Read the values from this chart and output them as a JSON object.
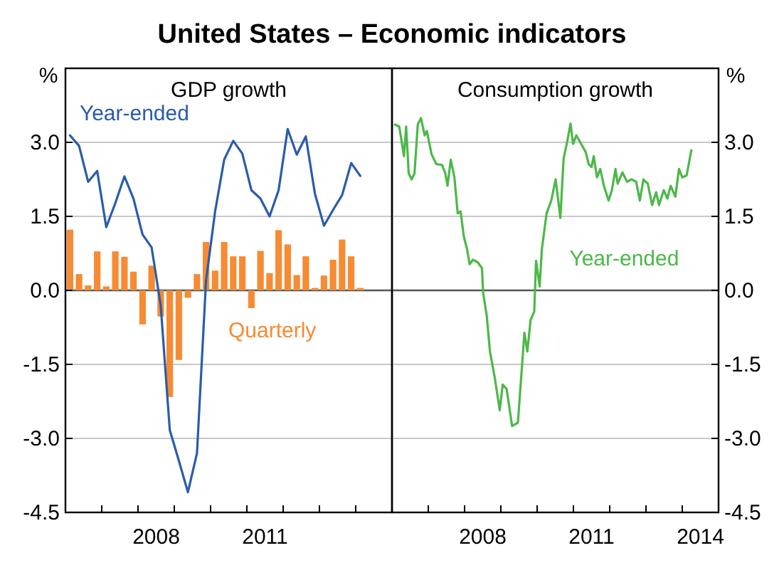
{
  "chart_data": [
    {
      "type": "bar",
      "title": "United States – Economic indicators",
      "subtitle": "GDP growth",
      "ylabel": "%",
      "x": [
        2006.125,
        2006.375,
        2006.625,
        2006.875,
        2007.125,
        2007.375,
        2007.625,
        2007.875,
        2008.125,
        2008.375,
        2008.625,
        2008.875,
        2009.125,
        2009.375,
        2009.625,
        2009.875,
        2010.125,
        2010.375,
        2010.625,
        2010.875,
        2011.125,
        2011.375,
        2011.625,
        2011.875,
        2012.125,
        2012.375,
        2012.625,
        2012.875,
        2013.125,
        2013.375,
        2013.625,
        2013.875,
        2014.125
      ],
      "series": [
        {
          "name": "Quarterly",
          "color": "#f68b33",
          "values": [
            1.23,
            0.33,
            0.1,
            0.79,
            0.08,
            0.79,
            0.68,
            0.38,
            -0.69,
            0.5,
            -0.53,
            -2.16,
            -1.41,
            -0.15,
            0.33,
            0.98,
            0.4,
            0.98,
            0.69,
            0.69,
            -0.36,
            0.8,
            0.35,
            1.22,
            0.93,
            0.31,
            0.69,
            0.05,
            0.3,
            0.62,
            1.03,
            0.69,
            0.05
          ]
        },
        {
          "name": "Year-ended",
          "type": "line",
          "color": "#2a5caa",
          "values": [
            3.14,
            2.93,
            2.2,
            2.42,
            1.28,
            1.77,
            2.31,
            1.86,
            1.13,
            0.87,
            -0.3,
            -2.83,
            -3.45,
            -4.09,
            -3.3,
            0.2,
            1.6,
            2.65,
            3.03,
            2.77,
            2.03,
            1.86,
            1.5,
            2.03,
            3.27,
            2.75,
            3.12,
            1.96,
            1.31,
            1.63,
            1.93,
            2.58,
            2.32
          ]
        }
      ],
      "xlim": [
        2006,
        2015
      ],
      "xticks": [
        {
          "value": 2007,
          "label": null
        },
        {
          "value": 2008,
          "label": null
        },
        {
          "value": 2008.5,
          "label": "2008"
        },
        {
          "value": 2009,
          "label": null
        },
        {
          "value": 2010,
          "label": null
        },
        {
          "value": 2011,
          "label": null
        },
        {
          "value": 2011.5,
          "label": "2011"
        },
        {
          "value": 2012,
          "label": null
        },
        {
          "value": 2013,
          "label": null
        },
        {
          "value": 2014,
          "label": null
        }
      ],
      "ylim": [
        -4.5,
        4.5
      ],
      "yticks": [
        {
          "value": -4.5,
          "label": "-4.5"
        },
        {
          "value": -3,
          "label": "-3.0"
        },
        {
          "value": -1.5,
          "label": "-1.5"
        },
        {
          "value": 0,
          "label": "0.0"
        },
        {
          "value": 1.5,
          "label": "1.5"
        },
        {
          "value": 3,
          "label": "3.0"
        }
      ],
      "grid": "y",
      "ref_lines": [
        {
          "axis": "y",
          "value": 0,
          "color": "#555555"
        }
      ]
    },
    {
      "type": "line",
      "subtitle": "Consumption growth",
      "y2label": "%",
      "series": [
        {
          "name": "Year-ended",
          "color": "#4cb848",
          "axis": "y2",
          "x": [
            2006.08,
            2006.2,
            2006.33,
            2006.39,
            2006.46,
            2006.54,
            2006.62,
            2006.71,
            2006.8,
            2006.9,
            2006.96,
            2007.09,
            2007.22,
            2007.38,
            2007.47,
            2007.53,
            2007.62,
            2007.72,
            2007.81,
            2007.89,
            2007.98,
            2008.07,
            2008.14,
            2008.23,
            2008.36,
            2008.48,
            2008.51,
            2008.61,
            2008.7,
            2008.83,
            2008.97,
            2009.05,
            2009.16,
            2009.31,
            2009.47,
            2009.65,
            2009.73,
            2009.82,
            2009.92,
            2009.97,
            2010.07,
            2010.13,
            2010.26,
            2010.39,
            2010.51,
            2010.64,
            2010.73,
            2010.83,
            2010.92,
            2010.99,
            2011.08,
            2011.21,
            2011.34,
            2011.42,
            2011.5,
            2011.56,
            2011.65,
            2011.74,
            2011.84,
            2011.97,
            2012.06,
            2012.16,
            2012.22,
            2012.35,
            2012.48,
            2012.6,
            2012.73,
            2012.83,
            2012.93,
            2013.05,
            2013.17,
            2013.28,
            2013.36,
            2013.49,
            2013.59,
            2013.68,
            2013.81,
            2013.91,
            2014,
            2014.12,
            2014.25
          ],
          "values": [
            3.36,
            3.32,
            2.72,
            3.32,
            2.37,
            2.25,
            2.37,
            3.36,
            3.49,
            3.14,
            3.23,
            2.76,
            2.56,
            2.54,
            2.37,
            2.12,
            2.65,
            2.29,
            1.56,
            1.6,
            1.09,
            0.83,
            0.53,
            0.62,
            0.57,
            0.45,
            -0.04,
            -0.51,
            -1.24,
            -1.76,
            -2.43,
            -1.91,
            -2.0,
            -2.75,
            -2.68,
            -0.86,
            -1.24,
            -0.6,
            -0.43,
            0.6,
            0.08,
            0.83,
            1.56,
            1.82,
            2.25,
            1.47,
            2.67,
            3.02,
            3.38,
            2.97,
            3.14,
            2.97,
            2.8,
            2.56,
            2.5,
            2.72,
            2.29,
            2.46,
            2.12,
            1.82,
            2.03,
            2.46,
            2.16,
            2.39,
            2.2,
            2.25,
            2.2,
            1.82,
            2.25,
            2.16,
            1.73,
            1.99,
            1.73,
            2.03,
            1.86,
            2.12,
            1.9,
            2.46,
            2.29,
            2.33,
            2.84
          ]
        }
      ],
      "xlim": [
        2006,
        2015
      ],
      "xticks": [
        {
          "value": 2007,
          "label": null
        },
        {
          "value": 2008,
          "label": null
        },
        {
          "value": 2008.5,
          "label": "2008"
        },
        {
          "value": 2009,
          "label": null
        },
        {
          "value": 2010,
          "label": null
        },
        {
          "value": 2011,
          "label": null
        },
        {
          "value": 2011.5,
          "label": "2011"
        },
        {
          "value": 2012,
          "label": null
        },
        {
          "value": 2013,
          "label": null
        },
        {
          "value": 2014,
          "label": null
        },
        {
          "value": 2014.5,
          "label": "2014"
        }
      ],
      "y2lim": [
        -4.5,
        4.5
      ],
      "y2ticks": [
        {
          "value": -4.5,
          "label": "-4.5"
        },
        {
          "value": -3,
          "label": "-3.0"
        },
        {
          "value": -1.5,
          "label": "-1.5"
        },
        {
          "value": 0,
          "label": "0.0"
        },
        {
          "value": 1.5,
          "label": "1.5"
        },
        {
          "value": 3,
          "label": "3.0"
        }
      ],
      "grid": "y",
      "ref_lines": [
        {
          "axis": "y2",
          "value": 0,
          "color": "#555555"
        }
      ]
    }
  ]
}
